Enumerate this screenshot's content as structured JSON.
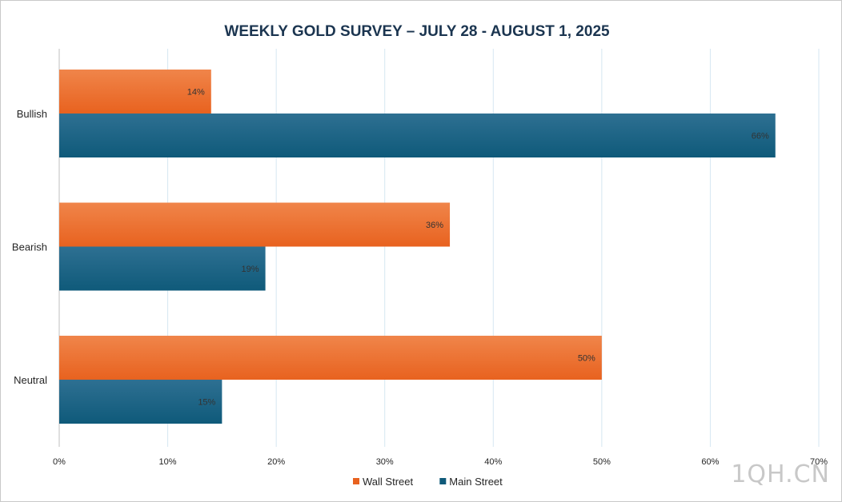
{
  "chart_data": {
    "type": "bar",
    "orientation": "horizontal",
    "title": "WEEKLY GOLD SURVEY – JULY 28 - AUGUST 1, 2025",
    "categories": [
      "Bullish",
      "Bearish",
      "Neutral"
    ],
    "series": [
      {
        "name": "Wall Street",
        "values": [
          14,
          36,
          50
        ],
        "color": "#e8621f",
        "color_light": "#f0854a"
      },
      {
        "name": "Main Street",
        "values": [
          66,
          19,
          15
        ],
        "color": "#0f5a7a",
        "color_light": "#2e7092"
      }
    ],
    "data_labels": [
      [
        "14%",
        "36%",
        "50%"
      ],
      [
        "66%",
        "19%",
        "15%"
      ]
    ],
    "xlim": [
      0,
      70
    ],
    "x_ticks": [
      "0%",
      "10%",
      "20%",
      "30%",
      "40%",
      "50%",
      "60%",
      "70%"
    ],
    "grid": "vertical",
    "legend_position": "bottom"
  },
  "watermark": "1QH.CN"
}
